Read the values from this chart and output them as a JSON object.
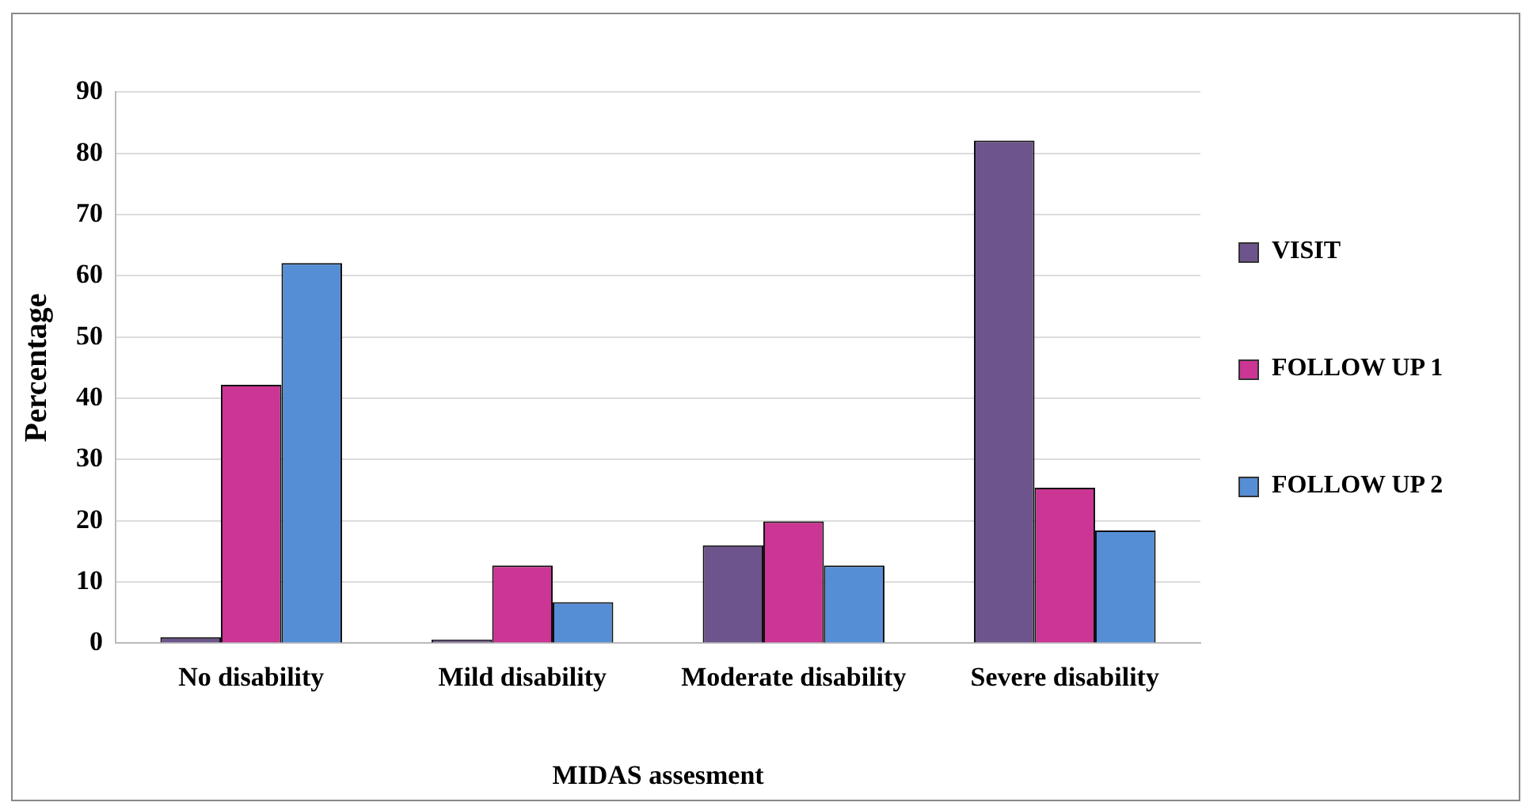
{
  "chart_data": {
    "type": "bar",
    "xlabel": "MIDAS assesment",
    "ylabel": "Percentage",
    "categories": [
      "No disability",
      "Mild disability",
      "Moderate disability",
      "Severe disability"
    ],
    "series": [
      {
        "name": "VISIT",
        "color": "#6e548c",
        "values": [
          1.0,
          0.6,
          16.0,
          82.1
        ]
      },
      {
        "name": "FOLLOW UP 1",
        "color": "#cb3594",
        "values": [
          42.2,
          12.7,
          19.9,
          25.4
        ]
      },
      {
        "name": "FOLLOW UP 2",
        "color": "#568ed5",
        "values": [
          62.1,
          6.7,
          12.7,
          18.4
        ]
      }
    ],
    "ylim": [
      0,
      90
    ],
    "yticks": [
      0,
      10,
      20,
      30,
      40,
      50,
      60,
      70,
      80,
      90
    ],
    "grid": "y",
    "legend": "right"
  }
}
